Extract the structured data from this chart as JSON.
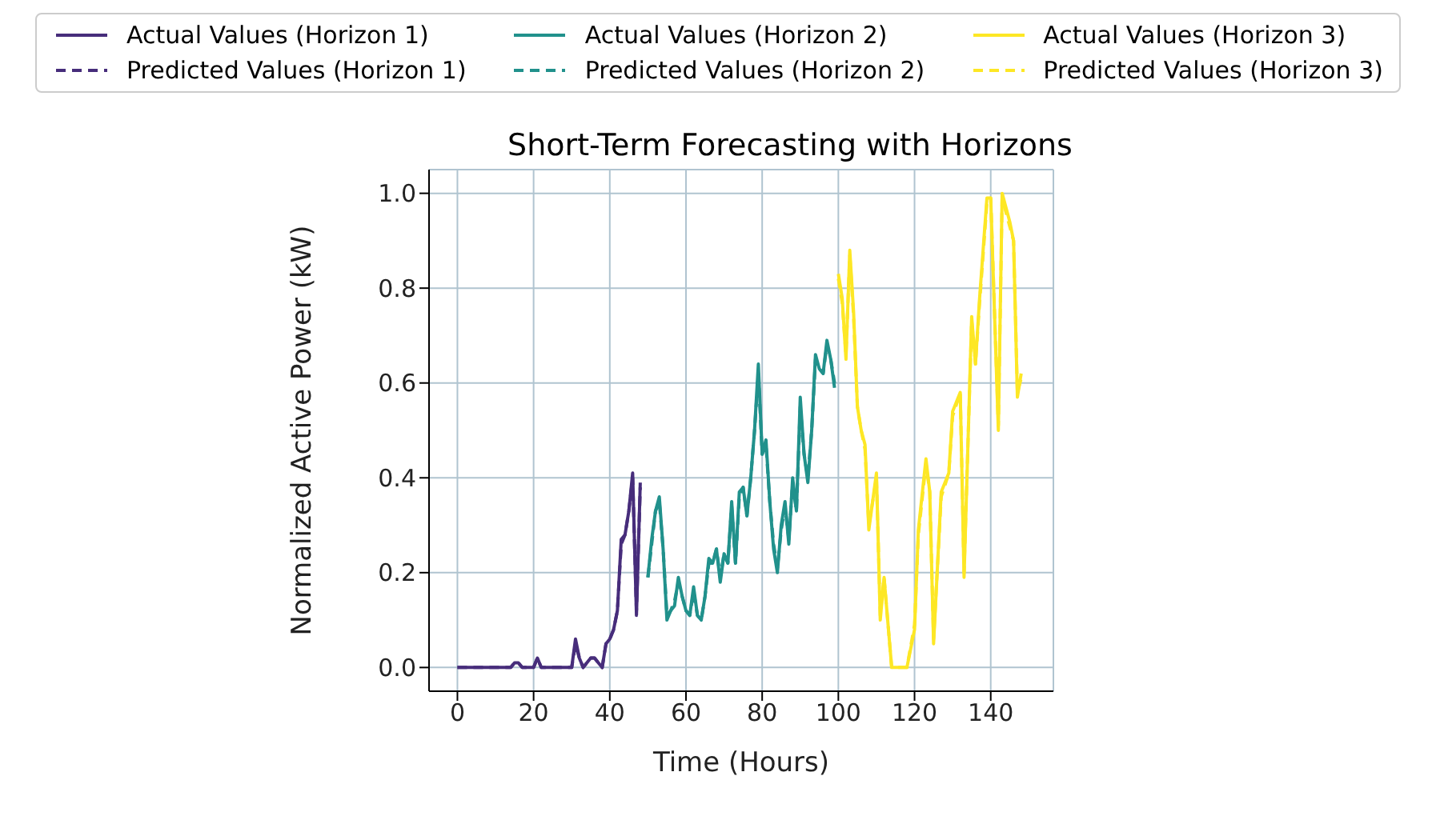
{
  "chart_data": {
    "type": "line",
    "title": "Short-Term Forecasting with Horizons",
    "xlabel": "Time (Hours)",
    "ylabel": "Normalized Active Power (kW)",
    "xlim": [
      -7.45,
      156.45
    ],
    "xticks": [
      0,
      20,
      40,
      60,
      80,
      100,
      120,
      140
    ],
    "ylim": [
      -0.05,
      1.05
    ],
    "yticks": [
      {
        "value": 0,
        "label": "0.0"
      },
      {
        "value": 0.2,
        "label": "0.2"
      },
      {
        "value": 0.4,
        "label": "0.4"
      },
      {
        "value": 0.6,
        "label": "0.6"
      },
      {
        "value": 0.8,
        "label": "0.8"
      },
      {
        "value": 1,
        "label": "1.0"
      }
    ],
    "grid": true,
    "legend": "top",
    "series": [
      {
        "name": "Actual Values (Horizon 1)",
        "color": "#472d7b",
        "line_style": "solid",
        "x": [
          0,
          14,
          15,
          16,
          17,
          20,
          21,
          22,
          30,
          31,
          32,
          33,
          35,
          36,
          37,
          38,
          39,
          40,
          41,
          42,
          43,
          44,
          45,
          46,
          47,
          48
        ],
        "values": [
          0,
          0,
          0.01,
          0.01,
          0,
          0,
          0.02,
          0,
          0,
          0.06,
          0.02,
          0,
          0.02,
          0.02,
          0.01,
          0,
          0.05,
          0.06,
          0.08,
          0.12,
          0.27,
          0.28,
          0.33,
          0.41,
          0.11,
          0.39
        ]
      },
      {
        "name": "Predicted Values (Horizon 1)",
        "color": "#472d7b",
        "line_style": "dashed",
        "x": [
          0,
          14,
          15,
          16,
          17,
          20,
          21,
          22,
          30,
          31,
          32,
          33,
          35,
          36,
          37,
          38,
          39,
          40,
          41,
          42,
          43,
          44,
          45,
          46,
          47,
          48
        ],
        "values": [
          0,
          0,
          0.01,
          0.01,
          0,
          0,
          0.02,
          0,
          0,
          0.05,
          0.02,
          0,
          0.02,
          0.02,
          0.01,
          0,
          0.05,
          0.06,
          0.08,
          0.12,
          0.26,
          0.28,
          0.33,
          0.4,
          0.12,
          0.38
        ]
      },
      {
        "name": "Actual Values (Horizon 2)",
        "color": "#21918c",
        "line_style": "solid",
        "x": [
          50,
          51,
          52,
          53,
          54,
          55,
          56,
          57,
          58,
          59,
          60,
          61,
          62,
          63,
          64,
          65,
          66,
          67,
          68,
          69,
          70,
          71,
          72,
          73,
          74,
          75,
          76,
          77,
          78,
          79,
          80,
          81,
          82,
          83,
          84,
          85,
          86,
          87,
          88,
          89,
          90,
          91,
          92,
          93,
          94,
          95,
          96,
          97,
          98,
          99
        ],
        "values": [
          0.19,
          0.27,
          0.33,
          0.36,
          0.25,
          0.1,
          0.12,
          0.13,
          0.19,
          0.15,
          0.12,
          0.11,
          0.17,
          0.11,
          0.1,
          0.15,
          0.23,
          0.22,
          0.25,
          0.18,
          0.24,
          0.22,
          0.35,
          0.22,
          0.37,
          0.38,
          0.32,
          0.4,
          0.5,
          0.64,
          0.45,
          0.48,
          0.35,
          0.25,
          0.2,
          0.3,
          0.35,
          0.26,
          0.4,
          0.33,
          0.57,
          0.45,
          0.39,
          0.5,
          0.66,
          0.63,
          0.62,
          0.69,
          0.65,
          0.59
        ]
      },
      {
        "name": "Predicted Values (Horizon 2)",
        "color": "#21918c",
        "line_style": "dashed",
        "x": [
          50,
          51,
          52,
          53,
          54,
          55,
          56,
          57,
          58,
          59,
          60,
          61,
          62,
          63,
          64,
          65,
          66,
          67,
          68,
          69,
          70,
          71,
          72,
          73,
          74,
          75,
          76,
          77,
          78,
          79,
          80,
          81,
          82,
          83,
          84,
          85,
          86,
          87,
          88,
          89,
          90,
          91,
          92,
          93,
          94,
          95,
          96,
          97,
          98,
          99
        ],
        "values": [
          0.19,
          0.26,
          0.33,
          0.35,
          0.25,
          0.11,
          0.12,
          0.14,
          0.18,
          0.15,
          0.12,
          0.11,
          0.16,
          0.11,
          0.1,
          0.15,
          0.22,
          0.22,
          0.25,
          0.19,
          0.24,
          0.22,
          0.34,
          0.22,
          0.36,
          0.38,
          0.32,
          0.4,
          0.5,
          0.62,
          0.45,
          0.47,
          0.35,
          0.26,
          0.21,
          0.29,
          0.34,
          0.27,
          0.39,
          0.33,
          0.55,
          0.45,
          0.4,
          0.5,
          0.65,
          0.63,
          0.62,
          0.68,
          0.65,
          0.6
        ]
      },
      {
        "name": "Actual Values (Horizon 3)",
        "color": "#fde725",
        "line_style": "solid",
        "x": [
          100,
          101,
          102,
          103,
          104,
          105,
          106,
          107,
          108,
          110,
          111,
          112,
          114,
          118,
          120,
          121,
          123,
          124,
          125,
          127,
          129,
          130,
          132,
          133,
          135,
          136,
          137,
          139,
          140,
          142,
          143,
          145,
          146,
          147,
          148
        ],
        "values": [
          0.83,
          0.78,
          0.65,
          0.88,
          0.75,
          0.55,
          0.5,
          0.47,
          0.29,
          0.41,
          0.1,
          0.19,
          0,
          0,
          0.08,
          0.29,
          0.44,
          0.37,
          0.05,
          0.37,
          0.41,
          0.54,
          0.58,
          0.19,
          0.74,
          0.64,
          0.77,
          0.99,
          0.99,
          0.5,
          1,
          0.94,
          0.9,
          0.57,
          0.62
        ]
      },
      {
        "name": "Predicted Values (Horizon 3)",
        "color": "#fde725",
        "line_style": "dashed",
        "x": [
          100,
          101,
          102,
          103,
          104,
          105,
          106,
          107,
          108,
          110,
          111,
          112,
          114,
          118,
          120,
          121,
          123,
          124,
          125,
          127,
          129,
          130,
          132,
          133,
          135,
          136,
          137,
          139,
          140,
          142,
          143,
          145,
          146,
          147,
          148
        ],
        "values": [
          0.82,
          0.77,
          0.66,
          0.87,
          0.74,
          0.55,
          0.5,
          0.46,
          0.3,
          0.4,
          0.11,
          0.19,
          0,
          0,
          0.09,
          0.28,
          0.43,
          0.37,
          0.06,
          0.36,
          0.41,
          0.53,
          0.58,
          0.2,
          0.73,
          0.64,
          0.76,
          0.98,
          0.99,
          0.51,
          0.99,
          0.93,
          0.9,
          0.58,
          0.61
        ]
      }
    ]
  }
}
